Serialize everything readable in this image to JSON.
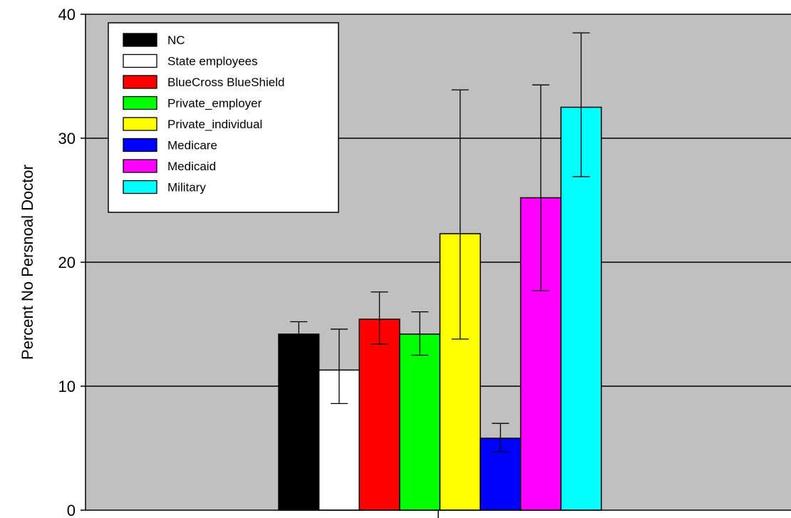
{
  "chart_data": {
    "type": "bar",
    "ylabel": "Percent No Persnoal Doctor",
    "xlabel": "",
    "ylim": [
      0,
      40
    ],
    "yticks": [
      "0",
      "10",
      "20",
      "30",
      "40"
    ],
    "grid": true,
    "legend_position": "top-left",
    "background": "#c0c0c0",
    "series": [
      {
        "name": "NC",
        "value": 14.2,
        "err_low": 13.3,
        "err_high": 15.2,
        "color": "#000000"
      },
      {
        "name": "State employees",
        "value": 11.3,
        "err_low": 8.6,
        "err_high": 14.6,
        "color": "#ffffff"
      },
      {
        "name": "BlueCross BlueShield",
        "value": 15.4,
        "err_low": 13.4,
        "err_high": 17.6,
        "color": "#ff0000"
      },
      {
        "name": "Private_employer",
        "value": 14.2,
        "err_low": 12.5,
        "err_high": 16.0,
        "color": "#00ff00"
      },
      {
        "name": "Private_individual",
        "value": 22.3,
        "err_low": 13.8,
        "err_high": 33.9,
        "color": "#ffff00"
      },
      {
        "name": "Medicare",
        "value": 5.8,
        "err_low": 4.7,
        "err_high": 7.0,
        "color": "#0000ff"
      },
      {
        "name": "Medicaid",
        "value": 25.2,
        "err_low": 17.7,
        "err_high": 34.3,
        "color": "#ff00ff"
      },
      {
        "name": "Military",
        "value": 32.5,
        "err_low": 26.9,
        "err_high": 38.5,
        "color": "#00ffff"
      }
    ]
  }
}
